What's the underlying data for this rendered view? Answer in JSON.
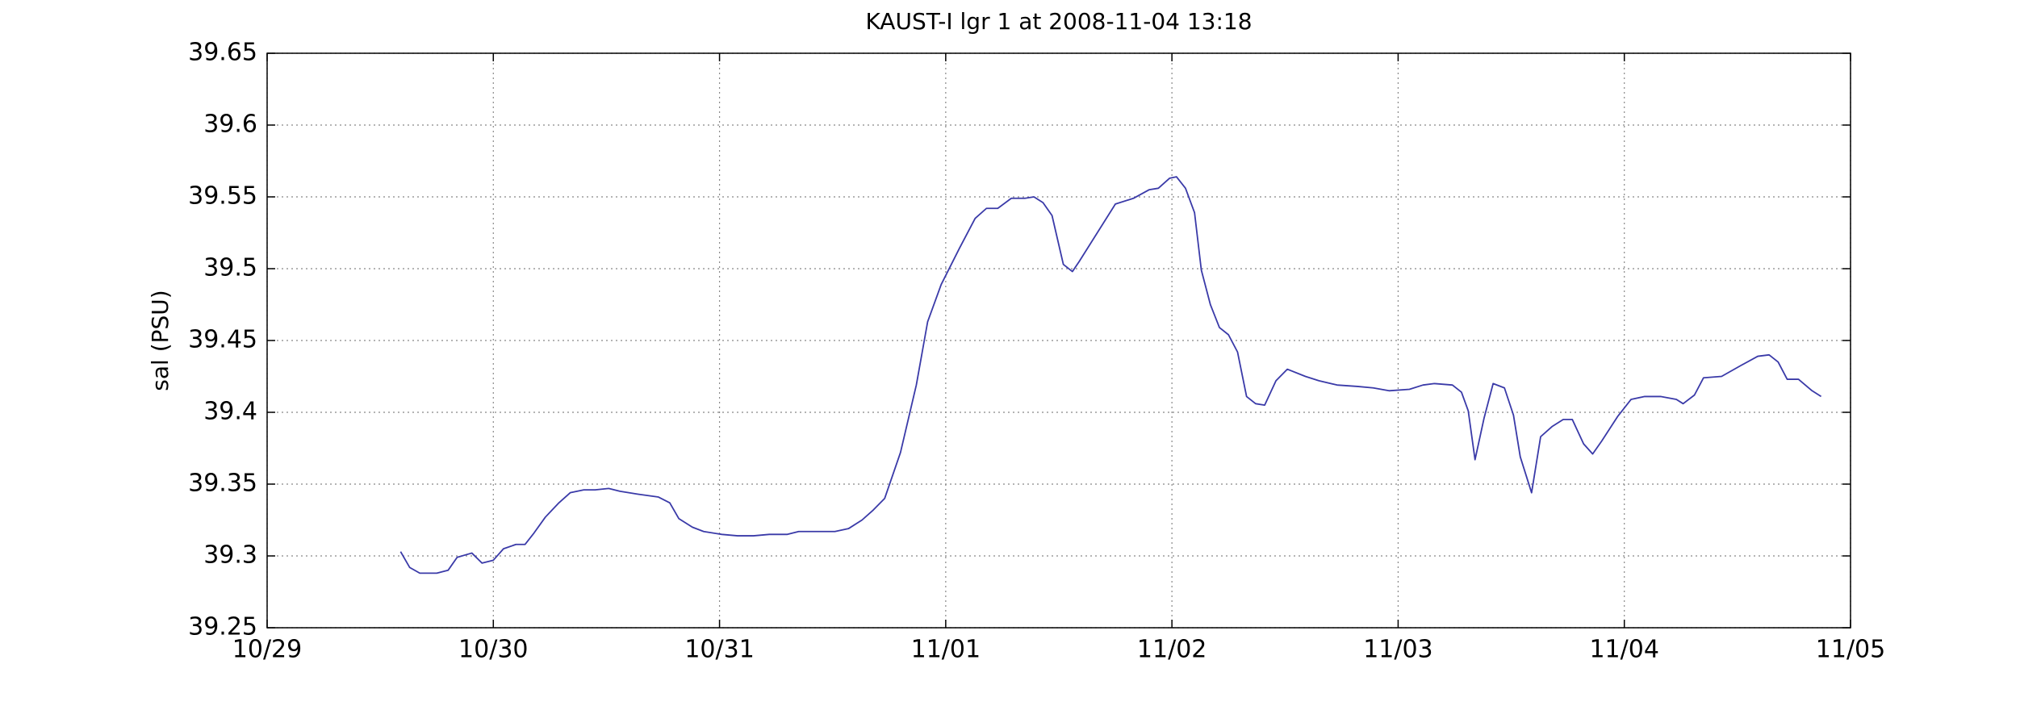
{
  "chart_data": {
    "type": "line",
    "title": "KAUST-I lgr 1 at 2008-11-04 13:18",
    "y_label": "sal (PSU)",
    "xlim": [
      0,
      7
    ],
    "xticks": [
      {
        "value": 0,
        "label": "10/29"
      },
      {
        "value": 1,
        "label": "10/30"
      },
      {
        "value": 2,
        "label": "10/31"
      },
      {
        "value": 3,
        "label": "11/01"
      },
      {
        "value": 4,
        "label": "11/02"
      },
      {
        "value": 5,
        "label": "11/03"
      },
      {
        "value": 6,
        "label": "11/04"
      },
      {
        "value": 7,
        "label": "11/05"
      }
    ],
    "ylim": [
      39.25,
      39.65
    ],
    "yticks": [
      39.25,
      39.3,
      39.35,
      39.4,
      39.45,
      39.5,
      39.55,
      39.6,
      39.65
    ],
    "grid": true,
    "series": [
      {
        "name": "sal",
        "color": "#3a3aa8",
        "x": [
          0.59,
          0.63,
          0.675,
          0.75,
          0.8,
          0.84,
          0.905,
          0.95,
          1.0,
          1.045,
          1.1,
          1.14,
          1.18,
          1.23,
          1.29,
          1.34,
          1.4,
          1.45,
          1.51,
          1.56,
          1.64,
          1.73,
          1.78,
          1.82,
          1.88,
          1.93,
          2.01,
          2.08,
          2.15,
          2.22,
          2.3,
          2.35,
          2.51,
          2.57,
          2.63,
          2.68,
          2.73,
          2.8,
          2.87,
          2.92,
          2.98,
          3.06,
          3.13,
          3.18,
          3.23,
          3.29,
          3.35,
          3.39,
          3.43,
          3.47,
          3.52,
          3.56,
          3.59,
          3.75,
          3.83,
          3.9,
          3.94,
          3.99,
          4.02,
          4.06,
          4.1,
          4.13,
          4.17,
          4.21,
          4.25,
          4.29,
          4.33,
          4.37,
          4.41,
          4.46,
          4.51,
          4.59,
          4.65,
          4.73,
          4.82,
          4.89,
          4.96,
          5.05,
          5.11,
          5.16,
          5.24,
          5.28,
          5.31,
          5.34,
          5.38,
          5.42,
          5.47,
          5.51,
          5.54,
          5.59,
          5.63,
          5.68,
          5.73,
          5.77,
          5.82,
          5.86,
          5.9,
          5.97,
          6.03,
          6.09,
          6.16,
          6.23,
          6.26,
          6.31,
          6.35,
          6.43,
          6.52,
          6.59,
          6.64,
          6.68,
          6.72,
          6.77,
          6.83,
          6.87
        ],
        "values": [
          39.303,
          39.292,
          39.288,
          39.288,
          39.29,
          39.299,
          39.302,
          39.295,
          39.297,
          39.305,
          39.308,
          39.308,
          39.316,
          39.327,
          39.337,
          39.344,
          39.346,
          39.346,
          39.347,
          39.345,
          39.343,
          39.341,
          39.337,
          39.326,
          39.32,
          39.317,
          39.315,
          39.314,
          39.314,
          39.315,
          39.315,
          39.317,
          39.317,
          39.319,
          39.325,
          39.332,
          39.34,
          39.372,
          39.419,
          39.463,
          39.489,
          39.514,
          39.535,
          39.542,
          39.542,
          39.549,
          39.549,
          39.55,
          39.546,
          39.537,
          39.503,
          39.498,
          39.505,
          39.545,
          39.549,
          39.555,
          39.556,
          39.563,
          39.564,
          39.556,
          39.539,
          39.499,
          39.475,
          39.459,
          39.454,
          39.442,
          39.411,
          39.406,
          39.405,
          39.422,
          39.43,
          39.425,
          39.422,
          39.419,
          39.418,
          39.417,
          39.415,
          39.416,
          39.419,
          39.42,
          39.419,
          39.414,
          39.401,
          39.367,
          39.396,
          39.42,
          39.417,
          39.398,
          39.369,
          39.344,
          39.383,
          39.39,
          39.395,
          39.395,
          39.378,
          39.371,
          39.38,
          39.397,
          39.409,
          39.411,
          39.411,
          39.409,
          39.406,
          39.412,
          39.424,
          39.425,
          39.433,
          39.439,
          39.44,
          39.435,
          39.423,
          39.423,
          39.415,
          39.411
        ]
      }
    ]
  }
}
